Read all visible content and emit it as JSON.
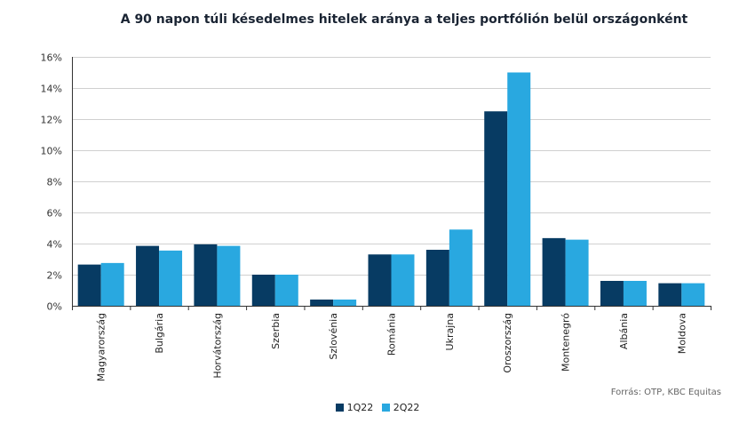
{
  "chart_data": {
    "type": "bar",
    "title": "A 90 napon túli késedelmes hitelek aránya a teljes portfólión belül országonként",
    "categories": [
      "Magyarország",
      "Bulgária",
      "Horvátország",
      "Szerbia",
      "Szlovénia",
      "Románia",
      "Ukrajna",
      "Oroszország",
      "Montenegró",
      "Albánia",
      "Moldova"
    ],
    "series": [
      {
        "name": "1Q22",
        "color": "#073b63",
        "values": [
          2.65,
          3.85,
          3.95,
          2.0,
          0.4,
          3.3,
          3.6,
          12.5,
          4.35,
          1.6,
          1.45
        ]
      },
      {
        "name": "2Q22",
        "color": "#29a8e0",
        "values": [
          2.75,
          3.55,
          3.85,
          2.0,
          0.4,
          3.3,
          4.9,
          15.0,
          4.25,
          1.6,
          1.45
        ]
      }
    ],
    "ylim": [
      0,
      16
    ],
    "yticks": [
      "0%",
      "2%",
      "4%",
      "6%",
      "8%",
      "10%",
      "12%",
      "14%",
      "16%"
    ],
    "ytick_values": [
      0,
      2,
      4,
      6,
      8,
      10,
      12,
      14,
      16
    ],
    "grid": true,
    "legend": "bottom-center",
    "source": "Forrás: OTP, KBC Equitas"
  }
}
